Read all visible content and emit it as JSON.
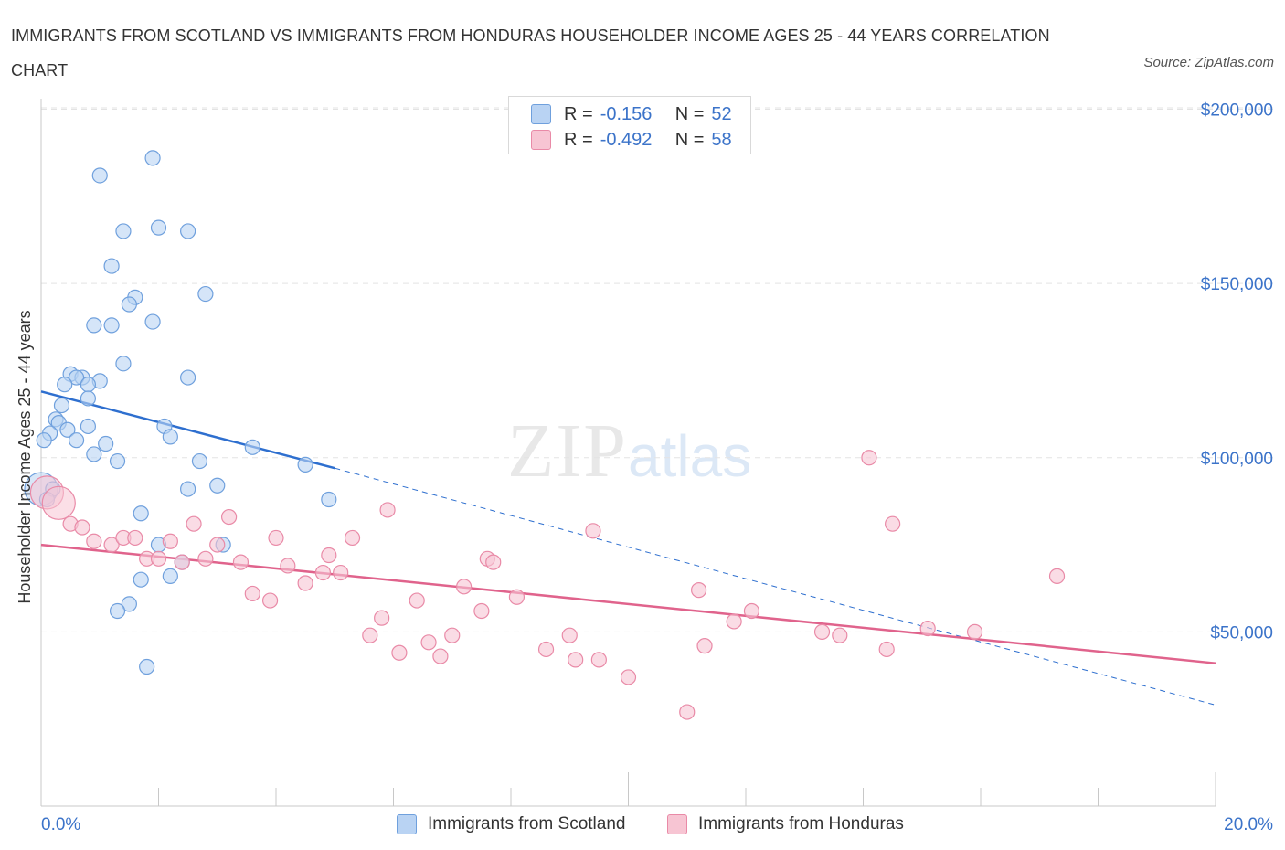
{
  "title": "IMMIGRANTS FROM SCOTLAND VS IMMIGRANTS FROM HONDURAS HOUSEHOLDER INCOME AGES 25 - 44 YEARS CORRELATION CHART",
  "source": "Source: ZipAtlas.com",
  "watermark": {
    "zip": "ZIP",
    "atlas": "atlas"
  },
  "legend_top": {
    "rows": [
      {
        "r_label": "R =",
        "r_value": "-0.156",
        "n_label": "N =",
        "n_value": "52",
        "color": "#b9d3f3"
      },
      {
        "r_label": "R =",
        "r_value": "-0.492",
        "n_label": "N =",
        "n_value": "58",
        "color": "#f7c5d3"
      }
    ]
  },
  "legend_bottom": [
    {
      "label": "Immigrants from Scotland",
      "color": "#b9d3f3"
    },
    {
      "label": "Immigrants from Honduras",
      "color": "#f7c5d3"
    }
  ],
  "chart_data": {
    "type": "scatter",
    "xlabel": "",
    "ylabel": "Householder Income Ages 25 - 44 years",
    "xlim": [
      0,
      20
    ],
    "ylim": [
      0,
      200000
    ],
    "x_tick_labels": [
      "0.0%",
      "20.0%"
    ],
    "y_tick_labels": [
      "$200,000",
      "$150,000",
      "$100,000",
      "$50,000"
    ],
    "y_ticks": [
      200000,
      150000,
      100000,
      50000
    ],
    "grid": true,
    "legend_position": "bottom",
    "series": [
      {
        "name": "Immigrants from Scotland",
        "color": "#6fa0dd",
        "fill": "#b9d3f3",
        "trend": {
          "x": [
            0,
            5
          ],
          "y": [
            119000,
            97000
          ],
          "dash_extension_to_x": 20,
          "dash_extension_y": 29000
        },
        "points": [
          [
            1.0,
            181000
          ],
          [
            1.9,
            186000
          ],
          [
            1.4,
            165000
          ],
          [
            2.0,
            166000
          ],
          [
            2.5,
            165000
          ],
          [
            1.2,
            155000
          ],
          [
            1.6,
            146000
          ],
          [
            2.8,
            147000
          ],
          [
            1.5,
            144000
          ],
          [
            1.9,
            139000
          ],
          [
            0.9,
            138000
          ],
          [
            1.2,
            138000
          ],
          [
            1.4,
            127000
          ],
          [
            0.5,
            124000
          ],
          [
            0.7,
            123000
          ],
          [
            0.6,
            123000
          ],
          [
            2.5,
            123000
          ],
          [
            1.0,
            122000
          ],
          [
            0.4,
            121000
          ],
          [
            0.8,
            121000
          ],
          [
            0.8,
            117000
          ],
          [
            0.35,
            115000
          ],
          [
            0.25,
            111000
          ],
          [
            0.3,
            110000
          ],
          [
            0.8,
            109000
          ],
          [
            2.1,
            109000
          ],
          [
            0.15,
            107000
          ],
          [
            0.45,
            108000
          ],
          [
            0.6,
            105000
          ],
          [
            2.2,
            106000
          ],
          [
            0.05,
            105000
          ],
          [
            1.1,
            104000
          ],
          [
            3.6,
            103000
          ],
          [
            0.9,
            101000
          ],
          [
            1.3,
            99000
          ],
          [
            2.7,
            99000
          ],
          [
            4.5,
            98000
          ],
          [
            3.0,
            92000
          ],
          [
            2.5,
            91000
          ],
          [
            0,
            91000
          ],
          [
            4.9,
            88000
          ],
          [
            1.7,
            84000
          ],
          [
            3.1,
            75000
          ],
          [
            2.0,
            75000
          ],
          [
            2.4,
            70000
          ],
          [
            2.2,
            66000
          ],
          [
            1.7,
            65000
          ],
          [
            1.5,
            58000
          ],
          [
            1.3,
            56000
          ],
          [
            1.8,
            40000
          ],
          [
            0.2,
            91000
          ],
          [
            0.1,
            88000
          ]
        ]
      },
      {
        "name": "Immigrants from Honduras",
        "color": "#e98aa7",
        "fill": "#f7c5d3",
        "trend": {
          "x": [
            0,
            20
          ],
          "y": [
            75000,
            41000
          ]
        },
        "points": [
          [
            0.1,
            90000
          ],
          [
            0.3,
            87000
          ],
          [
            0.5,
            81000
          ],
          [
            0.7,
            80000
          ],
          [
            0.9,
            76000
          ],
          [
            1.2,
            75000
          ],
          [
            1.4,
            77000
          ],
          [
            1.6,
            77000
          ],
          [
            1.8,
            71000
          ],
          [
            2.0,
            71000
          ],
          [
            2.2,
            76000
          ],
          [
            2.4,
            70000
          ],
          [
            2.6,
            81000
          ],
          [
            2.8,
            71000
          ],
          [
            3.0,
            75000
          ],
          [
            3.2,
            83000
          ],
          [
            3.4,
            70000
          ],
          [
            3.6,
            61000
          ],
          [
            3.9,
            59000
          ],
          [
            4.0,
            77000
          ],
          [
            4.2,
            69000
          ],
          [
            4.5,
            64000
          ],
          [
            4.8,
            67000
          ],
          [
            4.9,
            72000
          ],
          [
            5.1,
            67000
          ],
          [
            5.3,
            77000
          ],
          [
            5.6,
            49000
          ],
          [
            5.9,
            85000
          ],
          [
            5.8,
            54000
          ],
          [
            6.1,
            44000
          ],
          [
            6.4,
            59000
          ],
          [
            6.6,
            47000
          ],
          [
            6.8,
            43000
          ],
          [
            7.0,
            49000
          ],
          [
            7.2,
            63000
          ],
          [
            7.5,
            56000
          ],
          [
            7.6,
            71000
          ],
          [
            7.7,
            70000
          ],
          [
            8.1,
            60000
          ],
          [
            8.6,
            45000
          ],
          [
            9.0,
            49000
          ],
          [
            9.1,
            42000
          ],
          [
            9.5,
            42000
          ],
          [
            9.4,
            79000
          ],
          [
            10.0,
            37000
          ],
          [
            11.0,
            27000
          ],
          [
            11.2,
            62000
          ],
          [
            11.3,
            46000
          ],
          [
            11.8,
            53000
          ],
          [
            12.1,
            56000
          ],
          [
            13.3,
            50000
          ],
          [
            13.6,
            49000
          ],
          [
            14.1,
            100000
          ],
          [
            14.5,
            81000
          ],
          [
            14.4,
            45000
          ],
          [
            15.1,
            51000
          ],
          [
            15.9,
            50000
          ],
          [
            17.3,
            66000
          ]
        ]
      }
    ]
  }
}
